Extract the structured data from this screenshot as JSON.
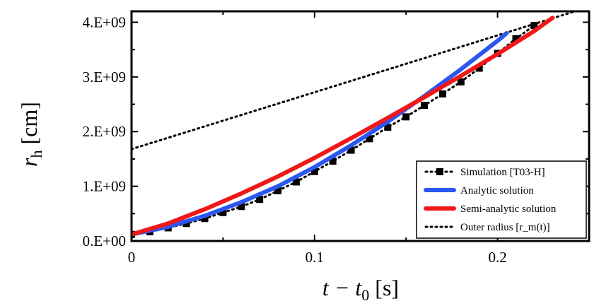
{
  "chart_data": {
    "type": "line",
    "xlabel": "t − t0 [s]",
    "ylabel": "rh [cm]",
    "xlabel_parts": {
      "main": "t − t",
      "sub": "0",
      "unit": " [s]"
    },
    "ylabel_parts": {
      "main": "r",
      "sub": "h",
      "unit": " [cm]"
    },
    "xlim": [
      0,
      0.25
    ],
    "ylim": [
      0,
      4200000000.0
    ],
    "x_ticks": [
      0,
      0.1,
      0.2
    ],
    "x_tick_labels": [
      "0",
      "0.1",
      "0.2"
    ],
    "y_ticks": [
      0,
      1000000000.0,
      2000000000.0,
      3000000000.0,
      4000000000.0
    ],
    "y_tick_labels": [
      "0.E+00",
      "1.E+09",
      "2.E+09",
      "3.E+09",
      "4.E+09"
    ],
    "grid": false,
    "legend_position": "bottom-right",
    "series": [
      {
        "name": "Simulation [T03-H]",
        "style": "dotted-with-square-markers",
        "color": "#000000",
        "x": [
          0,
          0.01,
          0.02,
          0.03,
          0.04,
          0.05,
          0.06,
          0.07,
          0.08,
          0.09,
          0.1,
          0.11,
          0.12,
          0.13,
          0.14,
          0.15,
          0.16,
          0.17,
          0.18,
          0.19,
          0.2,
          0.21,
          0.22
        ],
        "y": [
          120000000.0,
          170000000.0,
          240000000.0,
          320000000.0,
          410000000.0,
          520000000.0,
          630000000.0,
          760000000.0,
          920000000.0,
          1080000000.0,
          1270000000.0,
          1460000000.0,
          1660000000.0,
          1870000000.0,
          2080000000.0,
          2270000000.0,
          2480000000.0,
          2690000000.0,
          2910000000.0,
          3160000000.0,
          3430000000.0,
          3700000000.0,
          3940000000.0
        ]
      },
      {
        "name": "Analytic solution",
        "style": "solid",
        "color": "#2b57f0",
        "x": [
          0,
          0.02,
          0.04,
          0.06,
          0.08,
          0.1,
          0.12,
          0.14,
          0.16,
          0.18,
          0.19,
          0.2,
          0.205
        ],
        "y": [
          120000000.0,
          260000000.0,
          460000000.0,
          710000000.0,
          1000000000.0,
          1350000000.0,
          1750000000.0,
          2180000000.0,
          2650000000.0,
          3140000000.0,
          3400000000.0,
          3660000000.0,
          3800000000.0
        ]
      },
      {
        "name": "Semi-analytic solution",
        "style": "solid",
        "color": "#f01818",
        "x": [
          0,
          0.02,
          0.04,
          0.06,
          0.08,
          0.1,
          0.12,
          0.14,
          0.16,
          0.18,
          0.2,
          0.22,
          0.23
        ],
        "y": [
          120000000.0,
          320000000.0,
          580000000.0,
          870000000.0,
          1180000000.0,
          1520000000.0,
          1880000000.0,
          2250000000.0,
          2630000000.0,
          3020000000.0,
          3420000000.0,
          3840000000.0,
          4080000000.0
        ]
      },
      {
        "name": "Outer radius [r_m(t)]",
        "style": "dotted",
        "color": "#000000",
        "x": [
          0,
          0.25
        ],
        "y": [
          1680000000.0,
          4280000000.0
        ]
      }
    ]
  }
}
